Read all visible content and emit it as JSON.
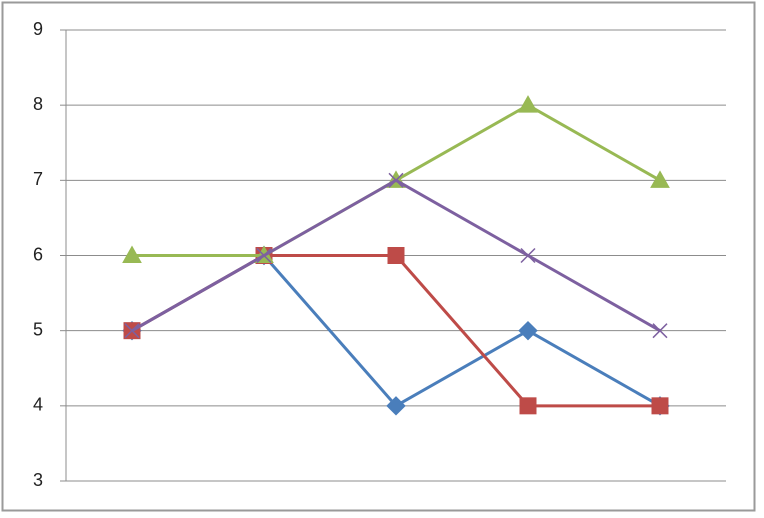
{
  "chart_data": {
    "type": "line",
    "categories": [
      null,
      null,
      null,
      null,
      null
    ],
    "series": [
      {
        "color": "#4a7ebb",
        "marker": "diamond",
        "values": [
          5,
          6,
          4,
          5,
          4
        ]
      },
      {
        "color": "#be4b48",
        "marker": "square",
        "values": [
          5,
          6,
          6,
          4,
          4
        ]
      },
      {
        "color": "#98b954",
        "marker": "triangle",
        "values": [
          6,
          6,
          7,
          8,
          7
        ]
      },
      {
        "color": "#7d60a0",
        "marker": "x",
        "values": [
          5,
          6,
          7,
          6,
          5
        ]
      }
    ],
    "ylim": [
      3,
      9
    ],
    "yticks": [
      3,
      4,
      5,
      6,
      7,
      8,
      9
    ],
    "grid": true
  }
}
